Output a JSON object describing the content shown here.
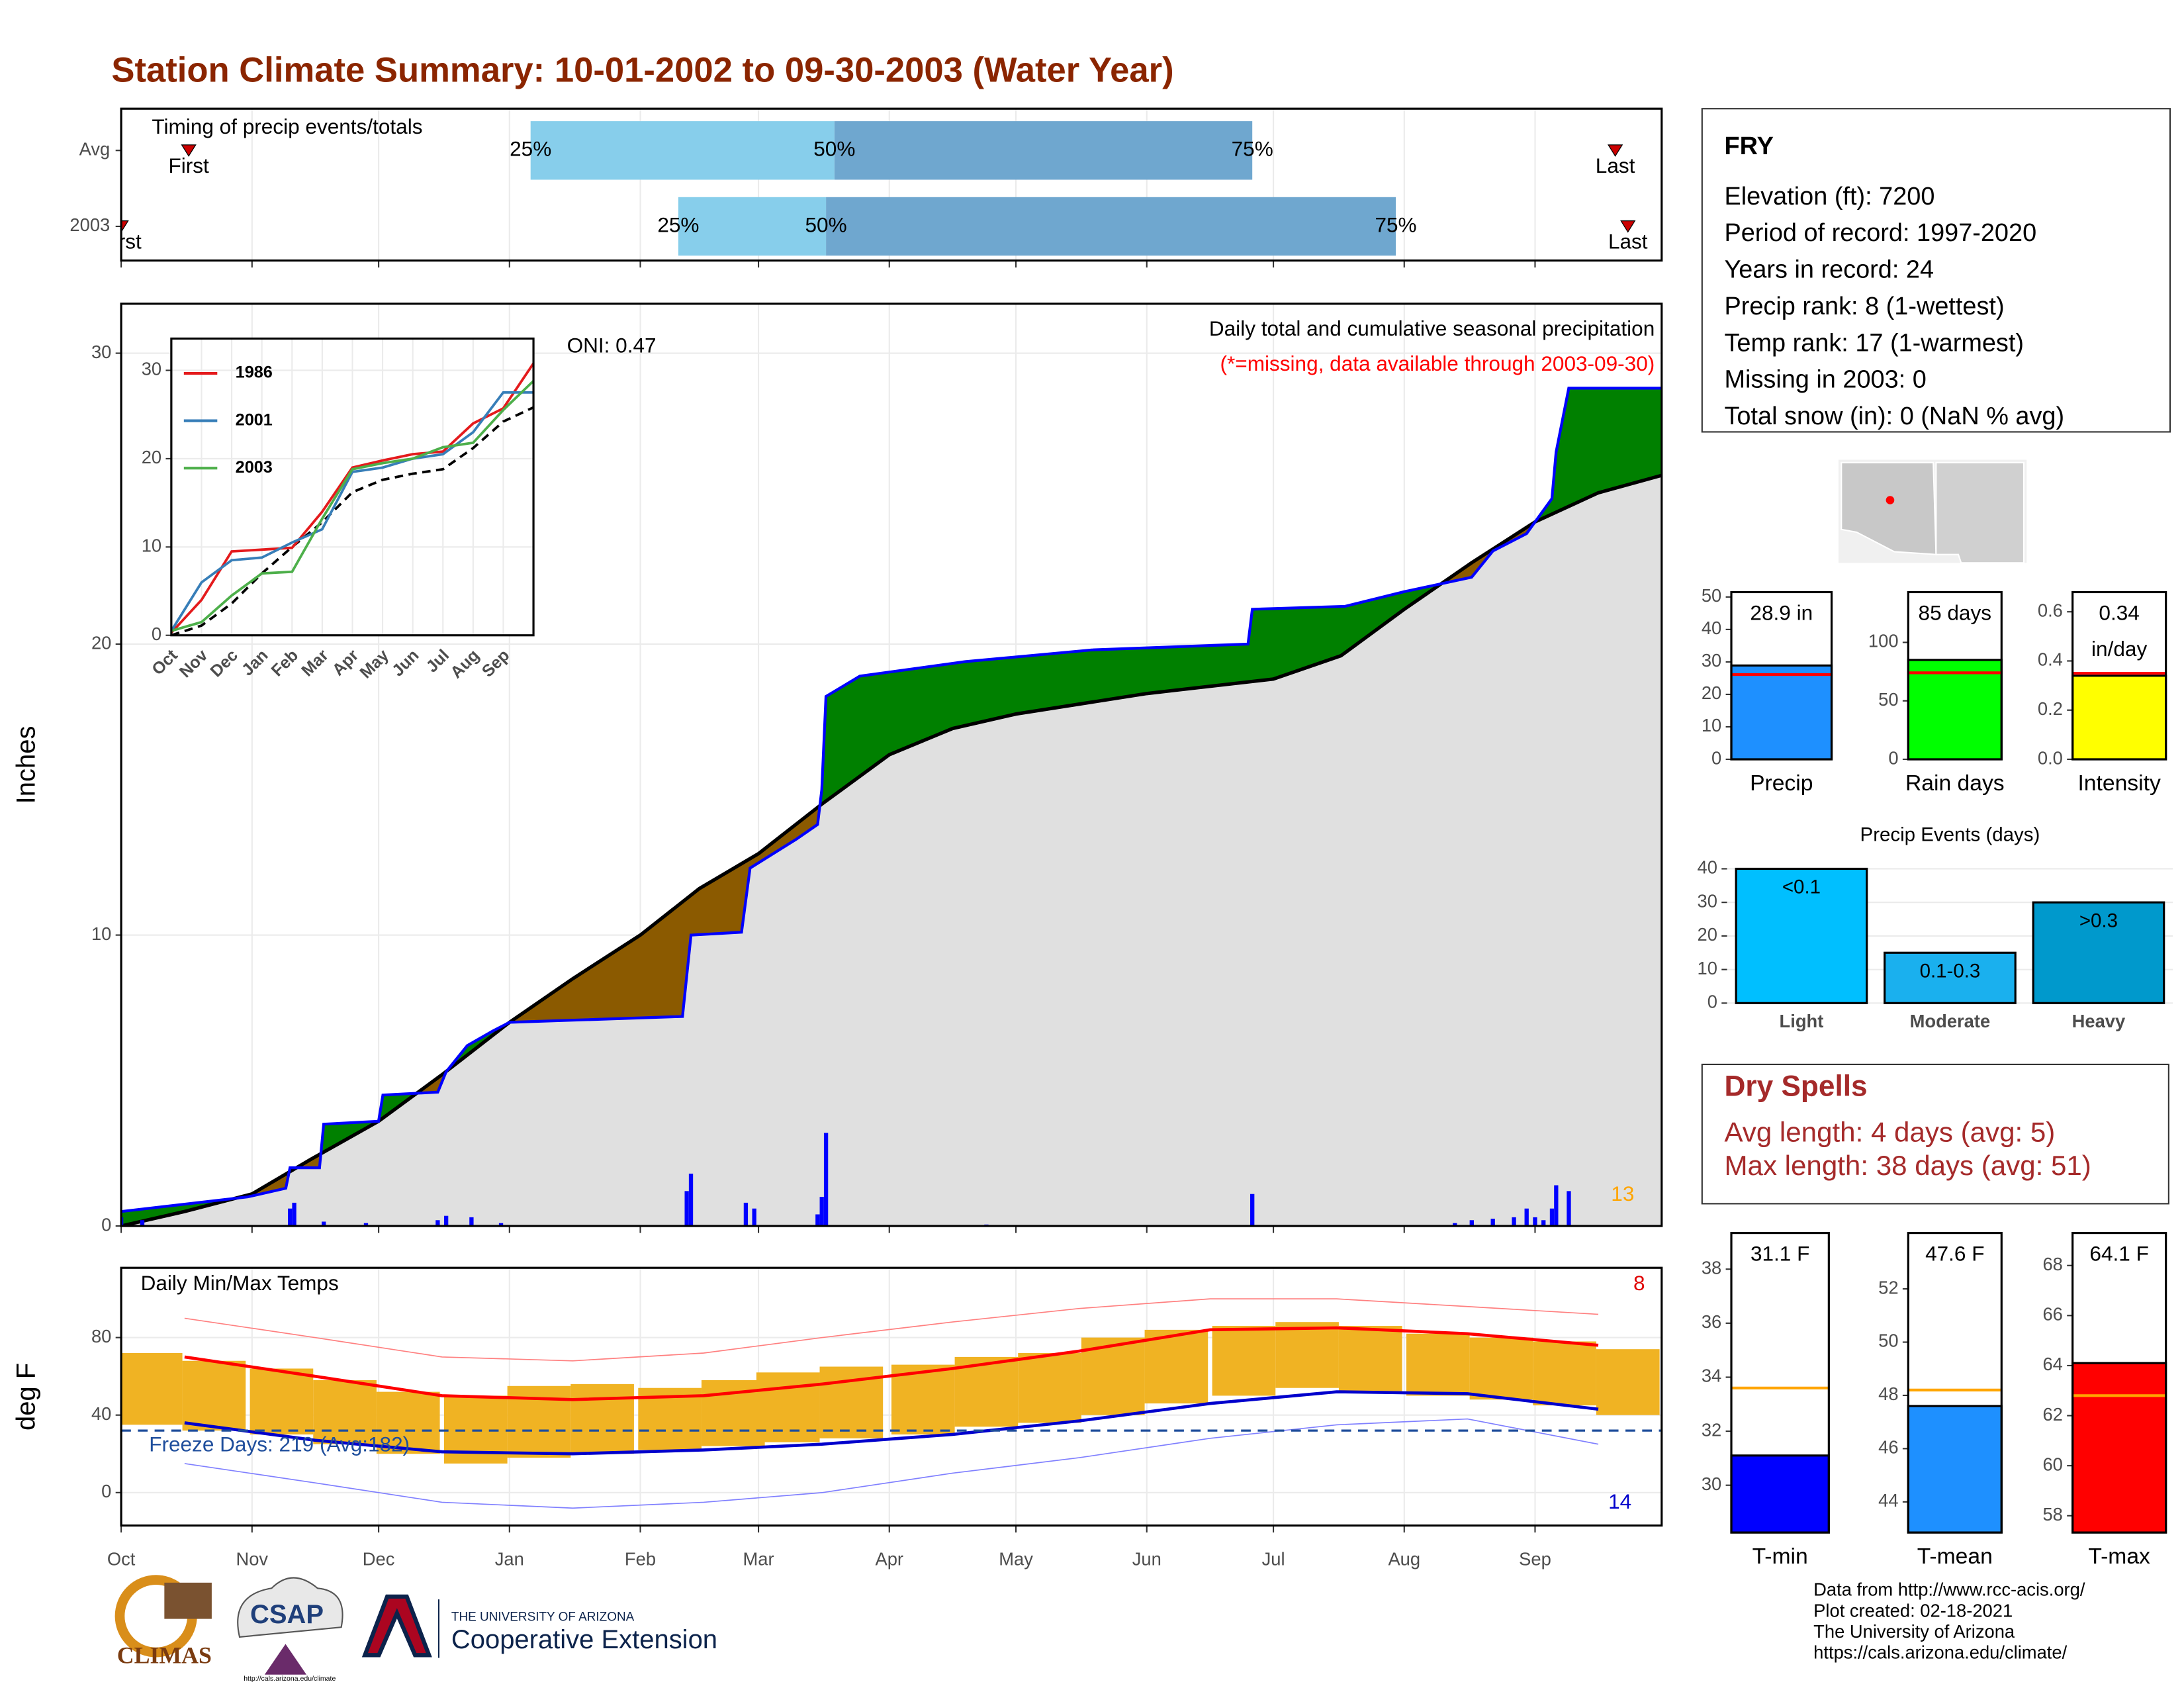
{
  "title": "Station Climate Summary: 10-01-2002 to 09-30-2003 (Water Year)",
  "info": {
    "station": "FRY",
    "lines": [
      "Elevation (ft): 7200",
      "Period of record: 1997-2020",
      "Years in record: 24",
      "Precip rank: 8 (1-wettest)",
      "Temp rank: 17 (1-warmest)",
      "Missing in 2003: 0",
      "Total snow (in): 0 (NaN % avg)"
    ]
  },
  "dry_spells": {
    "title": "Dry Spells",
    "lines": [
      "Avg length: 4 days (avg: 5)",
      "Max length: 38 days (avg: 51)"
    ]
  },
  "footer": [
    "Data from http://www.rcc-acis.org/",
    "Plot created: 02-18-2021",
    "The University of Arizona",
    "https://cals.arizona.edu/climate/"
  ],
  "logos": {
    "climas": "CLIMAS",
    "csap": "CSAP",
    "csap_url": "http://cals.arizona.edu/climate",
    "ua": "THE UNIVERSITY OF ARIZONA",
    "extension": "Cooperative Extension"
  },
  "chart_data": [
    {
      "type": "range",
      "title": "Timing of precip events/totals",
      "categories": [
        "Avg",
        "2003"
      ],
      "q25": [
        97,
        132
      ],
      "q50": [
        169,
        167
      ],
      "q75": [
        268,
        302
      ],
      "first": [
        16,
        0
      ],
      "last": [
        354,
        357
      ],
      "quantile_labels": [
        "25%",
        "50%",
        "75%"
      ],
      "first_label": "First",
      "last_label": "Last",
      "colors": [
        "#87ceeb",
        "#6fa7cf"
      ],
      "marker_color": "#cc0000",
      "xlim": [
        0,
        365
      ],
      "xticks": [
        0,
        31,
        61,
        92,
        123,
        151,
        182,
        212,
        243,
        273,
        304,
        335
      ],
      "grid": true
    },
    {
      "type": "area",
      "ylabel": "Inches",
      "annotations": [
        "Daily total and cumulative seasonal precipitation",
        "(*=missing, data available through 2003-09-30)",
        "ONI: 0.47",
        "13"
      ],
      "xlim": [
        0,
        365
      ],
      "xticks": [
        0,
        31,
        61,
        92,
        123,
        151,
        182,
        212,
        243,
        273,
        304,
        335
      ],
      "ylim": [
        0,
        31.7
      ],
      "yticks": [
        0,
        10,
        20,
        30
      ],
      "grid": true,
      "observed": {
        "color": "#0000ff",
        "x": [
          0,
          30,
          39,
          40,
          47,
          48,
          61,
          62,
          75,
          77,
          82,
          88,
          92,
          133,
          135,
          147,
          149,
          160,
          165,
          166,
          167,
          175,
          200,
          230,
          267,
          268,
          290,
          304,
          320,
          325,
          333,
          339,
          340,
          343,
          365
        ],
        "values": [
          0.5,
          1.0,
          1.3,
          2.0,
          2.0,
          3.5,
          3.6,
          4.5,
          4.6,
          5.3,
          6.2,
          6.7,
          7.0,
          7.2,
          10.0,
          10.1,
          12.3,
          13.3,
          13.8,
          15.0,
          18.2,
          18.9,
          19.4,
          19.8,
          20.0,
          21.2,
          21.3,
          21.8,
          22.3,
          23.2,
          23.8,
          25.0,
          26.6,
          28.8,
          28.8
        ]
      },
      "average": {
        "color": "#000000",
        "x": [
          0,
          15,
          31,
          45,
          61,
          76,
          92,
          107,
          123,
          137,
          151,
          166,
          182,
          197,
          212,
          243,
          273,
          289,
          304,
          320,
          335,
          350,
          365
        ],
        "values": [
          0,
          0.5,
          1.1,
          2.3,
          3.6,
          5.2,
          7.0,
          8.5,
          10.0,
          11.6,
          12.8,
          14.5,
          16.2,
          17.1,
          17.6,
          18.3,
          18.8,
          19.6,
          21.2,
          22.8,
          24.2,
          25.2,
          25.8
        ]
      },
      "daily": {
        "color": "#0000ff",
        "x": [
          0,
          5,
          40,
          41,
          48,
          58,
          75,
          77,
          83,
          90,
          134,
          135,
          148,
          150,
          165,
          166,
          167,
          205,
          268,
          316,
          320,
          325,
          330,
          333,
          335,
          337,
          339,
          340,
          343
        ],
        "values": [
          0.3,
          0.2,
          0.6,
          0.8,
          0.15,
          0.1,
          0.2,
          0.35,
          0.3,
          0.1,
          1.2,
          1.8,
          0.8,
          0.6,
          0.4,
          1.0,
          3.2,
          0.05,
          1.1,
          0.1,
          0.2,
          0.25,
          0.3,
          0.6,
          0.3,
          0.2,
          0.6,
          1.4,
          1.2
        ]
      },
      "colors": {
        "above": "#008000",
        "below": "#8b5a00",
        "base": "#e0e0e0",
        "annotation": "#ff0000",
        "count": "#ffa500"
      }
    },
    {
      "type": "line",
      "xlim": [
        0,
        12
      ],
      "ylim": [
        0,
        33.6
      ],
      "yticks": [
        0,
        10,
        20,
        30
      ],
      "xticks": [
        {
          "value": 0,
          "label": "Oct"
        },
        {
          "value": 1,
          "label": "Nov"
        },
        {
          "value": 2,
          "label": "Dec"
        },
        {
          "value": 3,
          "label": "Jan"
        },
        {
          "value": 4,
          "label": "Feb"
        },
        {
          "value": 5,
          "label": "Mar"
        },
        {
          "value": 6,
          "label": "Apr"
        },
        {
          "value": 7,
          "label": "May"
        },
        {
          "value": 8,
          "label": "Jun"
        },
        {
          "value": 9,
          "label": "Jul"
        },
        {
          "value": 10,
          "label": "Aug"
        },
        {
          "value": 11,
          "label": "Sep"
        }
      ],
      "x": [
        0,
        1,
        2,
        3,
        4,
        5,
        6,
        7,
        8,
        9,
        10,
        11,
        12
      ],
      "series": [
        {
          "name": "1986",
          "color": "#e41a1c",
          "values": [
            0.3,
            4,
            9.5,
            9.7,
            9.9,
            14,
            19,
            19.8,
            20.5,
            20.8,
            24,
            25.7,
            30.8
          ]
        },
        {
          "name": "2001",
          "color": "#377eb8",
          "values": [
            0.5,
            6,
            8.5,
            8.8,
            10.5,
            12,
            18.5,
            19,
            20,
            20.5,
            23,
            27.5,
            27.5
          ]
        },
        {
          "name": "2003",
          "color": "#4daf4a",
          "values": [
            0.5,
            1.5,
            4.5,
            7,
            7.2,
            13.2,
            18.8,
            19.5,
            20,
            21.3,
            21.8,
            25.5,
            28.8
          ]
        }
      ],
      "reference": {
        "color": "#000000",
        "values": [
          0,
          1.1,
          3.6,
          7,
          10,
          12.8,
          16.2,
          17.6,
          18.3,
          18.8,
          21.2,
          24.2,
          25.8
        ]
      }
    },
    {
      "type": "band",
      "title": "Daily Min/Max Temps",
      "ylabel": "deg F",
      "annotations": [
        "Freeze Days: 219 (Avg:182)",
        "8",
        "14"
      ],
      "xlim": [
        0,
        365
      ],
      "ylim": [
        -17,
        116
      ],
      "yticks": [
        0,
        40,
        80
      ],
      "freeze": 32,
      "xticks": [
        {
          "value": 0,
          "label": "Oct"
        },
        {
          "value": 31,
          "label": "Nov"
        },
        {
          "value": 61,
          "label": "Dec"
        },
        {
          "value": 92,
          "label": "Jan"
        },
        {
          "value": 123,
          "label": "Feb"
        },
        {
          "value": 151,
          "label": "Mar"
        },
        {
          "value": 182,
          "label": "Apr"
        },
        {
          "value": 212,
          "label": "May"
        },
        {
          "value": 243,
          "label": "Jun"
        },
        {
          "value": 273,
          "label": "Jul"
        },
        {
          "value": 304,
          "label": "Aug"
        },
        {
          "value": 335,
          "label": "Sep"
        }
      ],
      "x": [
        7,
        22,
        38,
        53,
        68,
        84,
        99,
        114,
        130,
        145,
        158,
        173,
        190,
        205,
        220,
        235,
        250,
        266,
        281,
        296,
        312,
        327,
        342,
        357
      ],
      "tmax": [
        72,
        68,
        64,
        58,
        52,
        50,
        55,
        56,
        54,
        58,
        62,
        65,
        66,
        70,
        72,
        80,
        84,
        86,
        88,
        86,
        82,
        80,
        78,
        74
      ],
      "tmin": [
        35,
        32,
        30,
        25,
        20,
        15,
        18,
        20,
        22,
        24,
        26,
        28,
        30,
        34,
        36,
        40,
        46,
        50,
        54,
        52,
        50,
        48,
        45,
        40
      ],
      "month_x": [
        15,
        46,
        76,
        107,
        138,
        166,
        197,
        227,
        258,
        288,
        319,
        350
      ],
      "avg_max": [
        70,
        60,
        50,
        48,
        50,
        56,
        64,
        73,
        84,
        85,
        82,
        76
      ],
      "avg_min": [
        36,
        27,
        21,
        20,
        22,
        25,
        30,
        37,
        46,
        52,
        51,
        43
      ],
      "record_max": [
        90,
        80,
        70,
        68,
        72,
        80,
        88,
        95,
        100,
        100,
        96,
        92
      ],
      "record_min": [
        15,
        5,
        -5,
        -8,
        -5,
        0,
        10,
        18,
        28,
        35,
        38,
        25
      ],
      "colors": {
        "band": "#f0b323",
        "avg_max": "#ff0000",
        "avg_min": "#0000cc",
        "record_max": "#ff8080",
        "record_min": "#8080ff",
        "freeze": "#1f4e9c"
      }
    },
    {
      "type": "bar",
      "categories": [
        "Precip"
      ],
      "values": [
        28.9
      ],
      "value_labels": [
        "28.9 in"
      ],
      "average": [
        26.1
      ],
      "color": "#1e90ff",
      "avg_color": "#ff0000",
      "ylim": [
        0,
        51.5
      ],
      "yticks": [
        0,
        10,
        20,
        30,
        40,
        50
      ]
    },
    {
      "type": "bar",
      "categories": [
        "Rain days"
      ],
      "values": [
        85
      ],
      "value_labels": [
        "85 days"
      ],
      "average": [
        74
      ],
      "color": "#00ff00",
      "avg_color": "#ff0000",
      "ylim": [
        0,
        143
      ],
      "yticks": [
        0,
        50,
        100
      ]
    },
    {
      "type": "bar",
      "categories": [
        "Intensity"
      ],
      "values": [
        0.34
      ],
      "value_labels": [
        "0.34"
      ],
      "unit_label": "in/day",
      "average": [
        0.35
      ],
      "color": "#ffff00",
      "avg_color": "#ff0000",
      "ylim": [
        0,
        0.68
      ],
      "yticks": [
        {
          "value": 0,
          "label": "0.0"
        },
        0.2,
        0.4,
        0.6
      ]
    },
    {
      "type": "events",
      "title": "Precip Events (days)",
      "categories": [
        "Light",
        "Moderate",
        "Heavy"
      ],
      "values": [
        40,
        15,
        30
      ],
      "value_labels": [
        "<0.1",
        "0.1-0.3",
        ">0.3"
      ],
      "colors": [
        "#00bfff",
        "#1ab0ee",
        "#0099cc"
      ],
      "ylim": [
        0,
        44.4
      ],
      "yticks": [
        0,
        10,
        20,
        30,
        40
      ],
      "grid": true
    },
    {
      "type": "bar",
      "categories": [
        "T-min"
      ],
      "values": [
        31.1
      ],
      "value_labels": [
        "31.1 F"
      ],
      "average": [
        33.6
      ],
      "color": "#0000ff",
      "avg_color": "#ffa500",
      "ylim": [
        28.25,
        39.34
      ],
      "yticks": [
        30,
        32,
        34,
        36,
        38
      ]
    },
    {
      "type": "bar",
      "categories": [
        "T-mean"
      ],
      "values": [
        47.6
      ],
      "value_labels": [
        "47.6 F"
      ],
      "average": [
        48.2
      ],
      "color": "#1e90ff",
      "avg_color": "#ffa500",
      "ylim": [
        42.85,
        54.1
      ],
      "yticks": [
        44,
        46,
        48,
        50,
        52
      ]
    },
    {
      "type": "bar",
      "categories": [
        "T-max"
      ],
      "values": [
        64.1
      ],
      "value_labels": [
        "64.1 F"
      ],
      "average": [
        62.8
      ],
      "color": "#ff0000",
      "avg_color": "#ffa500",
      "ylim": [
        57.33,
        69.3
      ],
      "yticks": [
        58,
        60,
        62,
        64,
        66,
        68
      ]
    }
  ]
}
